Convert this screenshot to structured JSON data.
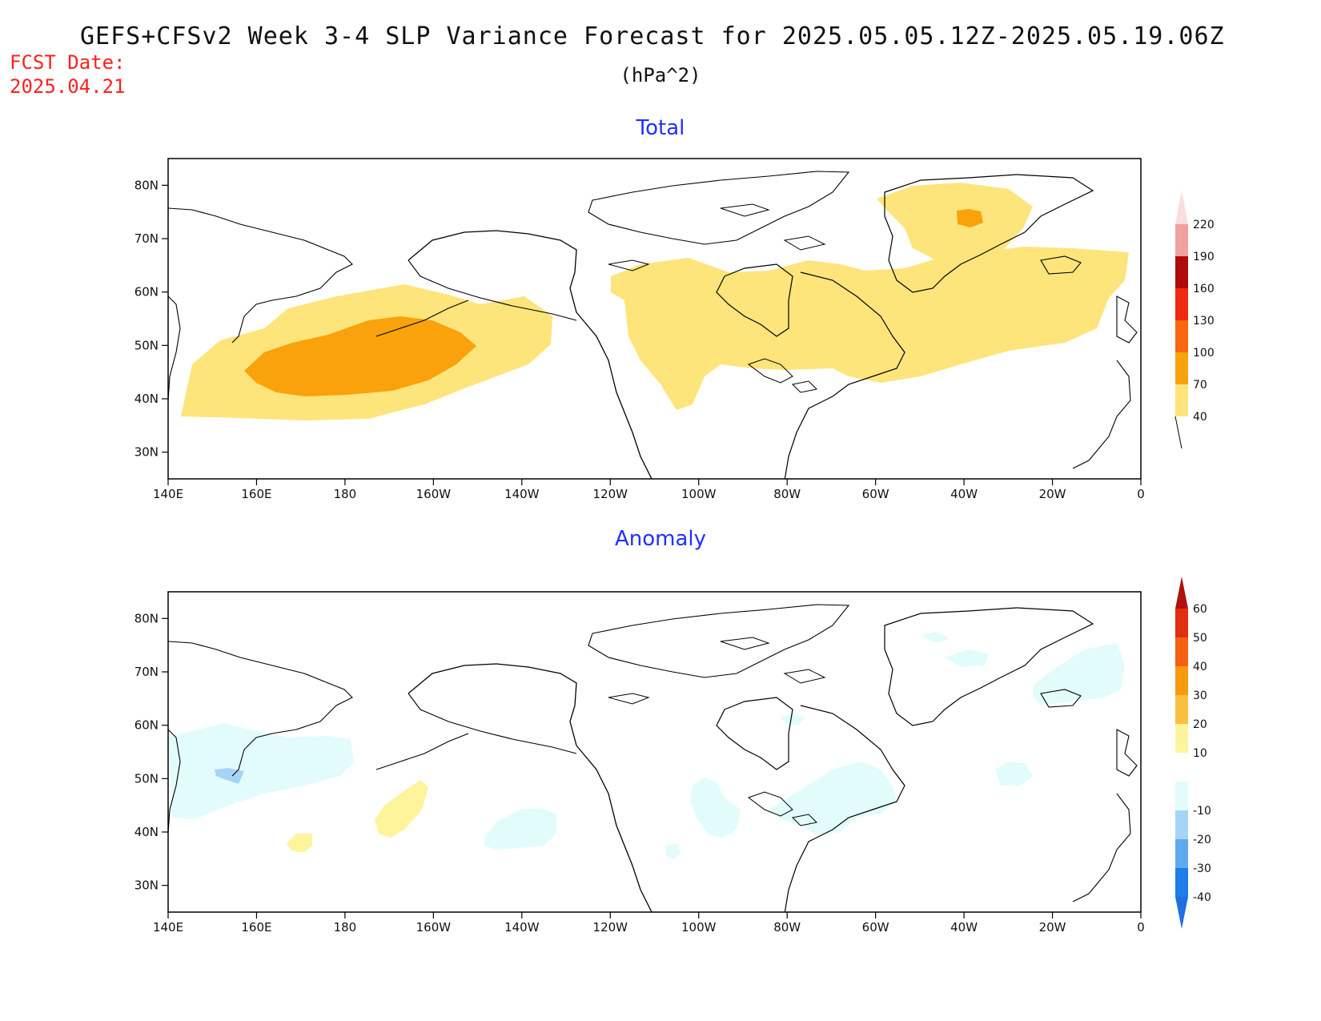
{
  "header": {
    "title": "GEFS+CFSv2 Week 3-4 SLP Variance Forecast for 2025.05.05.12Z-2025.05.19.06Z",
    "units": "(hPa^2)",
    "fcst_label": "FCST Date:",
    "fcst_date": "2025.04.21"
  },
  "panels": [
    {
      "title": "Total",
      "xticks": [
        "140E",
        "160E",
        "180",
        "160W",
        "140W",
        "120W",
        "100W",
        "80W",
        "60W",
        "40W",
        "20W",
        "0"
      ],
      "yticks": [
        "30N",
        "40N",
        "50N",
        "60N",
        "70N",
        "80N"
      ],
      "colorbar": {
        "levels": [
          "40",
          "70",
          "100",
          "130",
          "160",
          "190",
          "220"
        ],
        "colors": [
          "#fde57c",
          "#f9a20c",
          "#f96710",
          "#ef2a10",
          "#b00a0a",
          "#f0a0a0",
          "#f8dede"
        ]
      }
    },
    {
      "title": "Anomaly",
      "xticks": [
        "140E",
        "160E",
        "180",
        "160W",
        "140W",
        "120W",
        "100W",
        "80W",
        "60W",
        "40W",
        "20W",
        "0"
      ],
      "yticks": [
        "30N",
        "40N",
        "50N",
        "60N",
        "70N",
        "80N"
      ],
      "colorbar": {
        "levels": [
          "-40",
          "-30",
          "-20",
          "-10",
          "10",
          "20",
          "30",
          "40",
          "50",
          "60"
        ],
        "colors": [
          "#1e6fe0",
          "#1e7ee8",
          "#5fa9ee",
          "#a6d4f5",
          "#e2fcfc",
          "#ffffff",
          "#fdf49c",
          "#f9c040",
          "#f79a10",
          "#f26010",
          "#e03010",
          "#b01010"
        ]
      }
    }
  ],
  "chart_data": [
    {
      "type": "heatmap",
      "title": "Total",
      "units": "hPa^2",
      "x_range": [
        "140E",
        "0"
      ],
      "y_range": [
        "25N",
        "85N"
      ],
      "contour_levels": [
        40,
        70,
        100,
        130,
        160,
        190,
        220
      ],
      "regions": [
        {
          "region": "North Pacific (Aleutian storm track)",
          "min_level": 40,
          "core_level": 70,
          "core_area": "160E-160W, 43N-55N"
        },
        {
          "region": "Canada / Hudson Bay / Great Lakes",
          "min_level": 40
        },
        {
          "region": "North Atlantic / Labrador Sea",
          "min_level": 40
        },
        {
          "region": "Greenland (east)",
          "min_level": 40,
          "core_level": 70,
          "core_area": "near 40W, 72N"
        }
      ]
    },
    {
      "type": "heatmap",
      "title": "Anomaly",
      "units": "hPa^2",
      "x_range": [
        "140E",
        "0"
      ],
      "y_range": [
        "25N",
        "85N"
      ],
      "contour_levels": [
        -40,
        -30,
        -20,
        -10,
        10,
        20,
        30,
        40,
        50,
        60
      ],
      "regions": [
        {
          "region": "Kamchatka / NW Pacific",
          "level": -10,
          "core_level": -20,
          "core_area": "near 165E, 52N"
        },
        {
          "region": "Central Pacific (near 170W, 45N)",
          "level": 10
        },
        {
          "region": "Central Pacific (near 168E, 40N)",
          "level": 10
        },
        {
          "region": "NE Pacific (near 140W, 42N)",
          "level": -10
        },
        {
          "region": "Great Plains / Great Lakes",
          "level": -10
        },
        {
          "region": "Eastern Canada / Quebec",
          "level": -10
        },
        {
          "region": "Mid-Atlantic (near 30W, 52N)",
          "level": -10
        },
        {
          "region": "Iceland / Norwegian Sea",
          "level": -10
        }
      ]
    }
  ]
}
